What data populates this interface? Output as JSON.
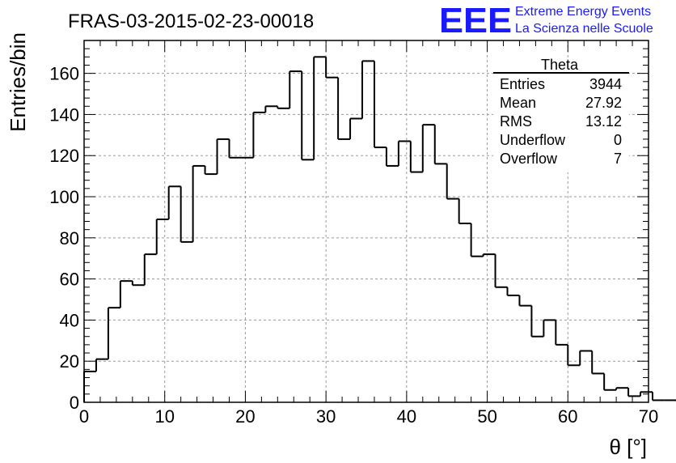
{
  "header": {
    "title": "FRAS-03-2015-02-23-00018",
    "logo_text": "EEE",
    "logo_line1": "Extreme Energy Events",
    "logo_line2": "La Scienza nelle Scuole"
  },
  "colors": {
    "logo": "#1a1aff",
    "histogram": "#000000",
    "grid": "#9a9a9a"
  },
  "stats": {
    "title": "Theta",
    "rows": [
      {
        "label": "Entries",
        "value": "3944"
      },
      {
        "label": "Mean",
        "value": "27.92"
      },
      {
        "label": "RMS",
        "value": "13.12"
      },
      {
        "label": "Underflow",
        "value": "0"
      },
      {
        "label": "Overflow",
        "value": "7"
      }
    ]
  },
  "chart_data": {
    "type": "bar",
    "style": "step-histogram",
    "title": "FRAS-03-2015-02-23-00018",
    "xlabel": "θ [°]",
    "ylabel": "Entries/bin",
    "xlim": [
      0,
      70
    ],
    "ylim": [
      0,
      176
    ],
    "grid": true,
    "stats_box_placement": "top-right",
    "bin_width": 1.5,
    "bin_start": 0,
    "values": [
      15,
      21,
      46,
      59,
      57,
      72,
      89,
      105,
      78,
      115,
      111,
      128,
      119,
      119,
      141,
      144,
      143,
      161,
      118,
      168,
      158,
      128,
      138,
      166,
      124,
      115,
      127,
      112,
      135,
      116,
      99,
      87,
      71,
      72,
      56,
      52,
      47,
      32,
      40,
      28,
      18,
      25,
      14,
      6,
      7,
      3,
      5,
      1,
      1,
      0
    ],
    "xticks": [
      0,
      10,
      20,
      30,
      40,
      50,
      60,
      70
    ],
    "yticks": [
      0,
      20,
      40,
      60,
      80,
      100,
      120,
      140,
      160
    ]
  }
}
